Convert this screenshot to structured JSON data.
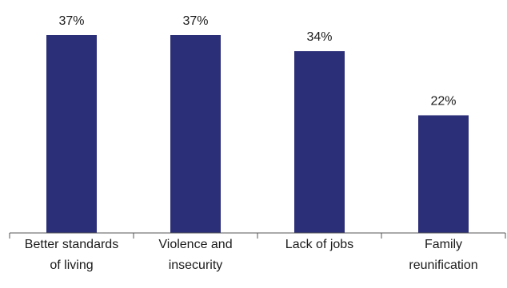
{
  "chart_data": {
    "type": "bar",
    "categories": [
      [
        "Better standards",
        "of living"
      ],
      [
        "Violence and",
        "insecurity"
      ],
      [
        "Lack of jobs"
      ],
      [
        "Family",
        "reunification"
      ]
    ],
    "values": [
      37,
      37,
      34,
      22
    ],
    "value_labels": [
      "37%",
      "37%",
      "34%",
      "22%"
    ],
    "ylim": [
      0,
      40
    ],
    "grid": false,
    "legend": "none",
    "colors": {
      "bar": "#2b2f78",
      "axis": "#555555"
    }
  }
}
